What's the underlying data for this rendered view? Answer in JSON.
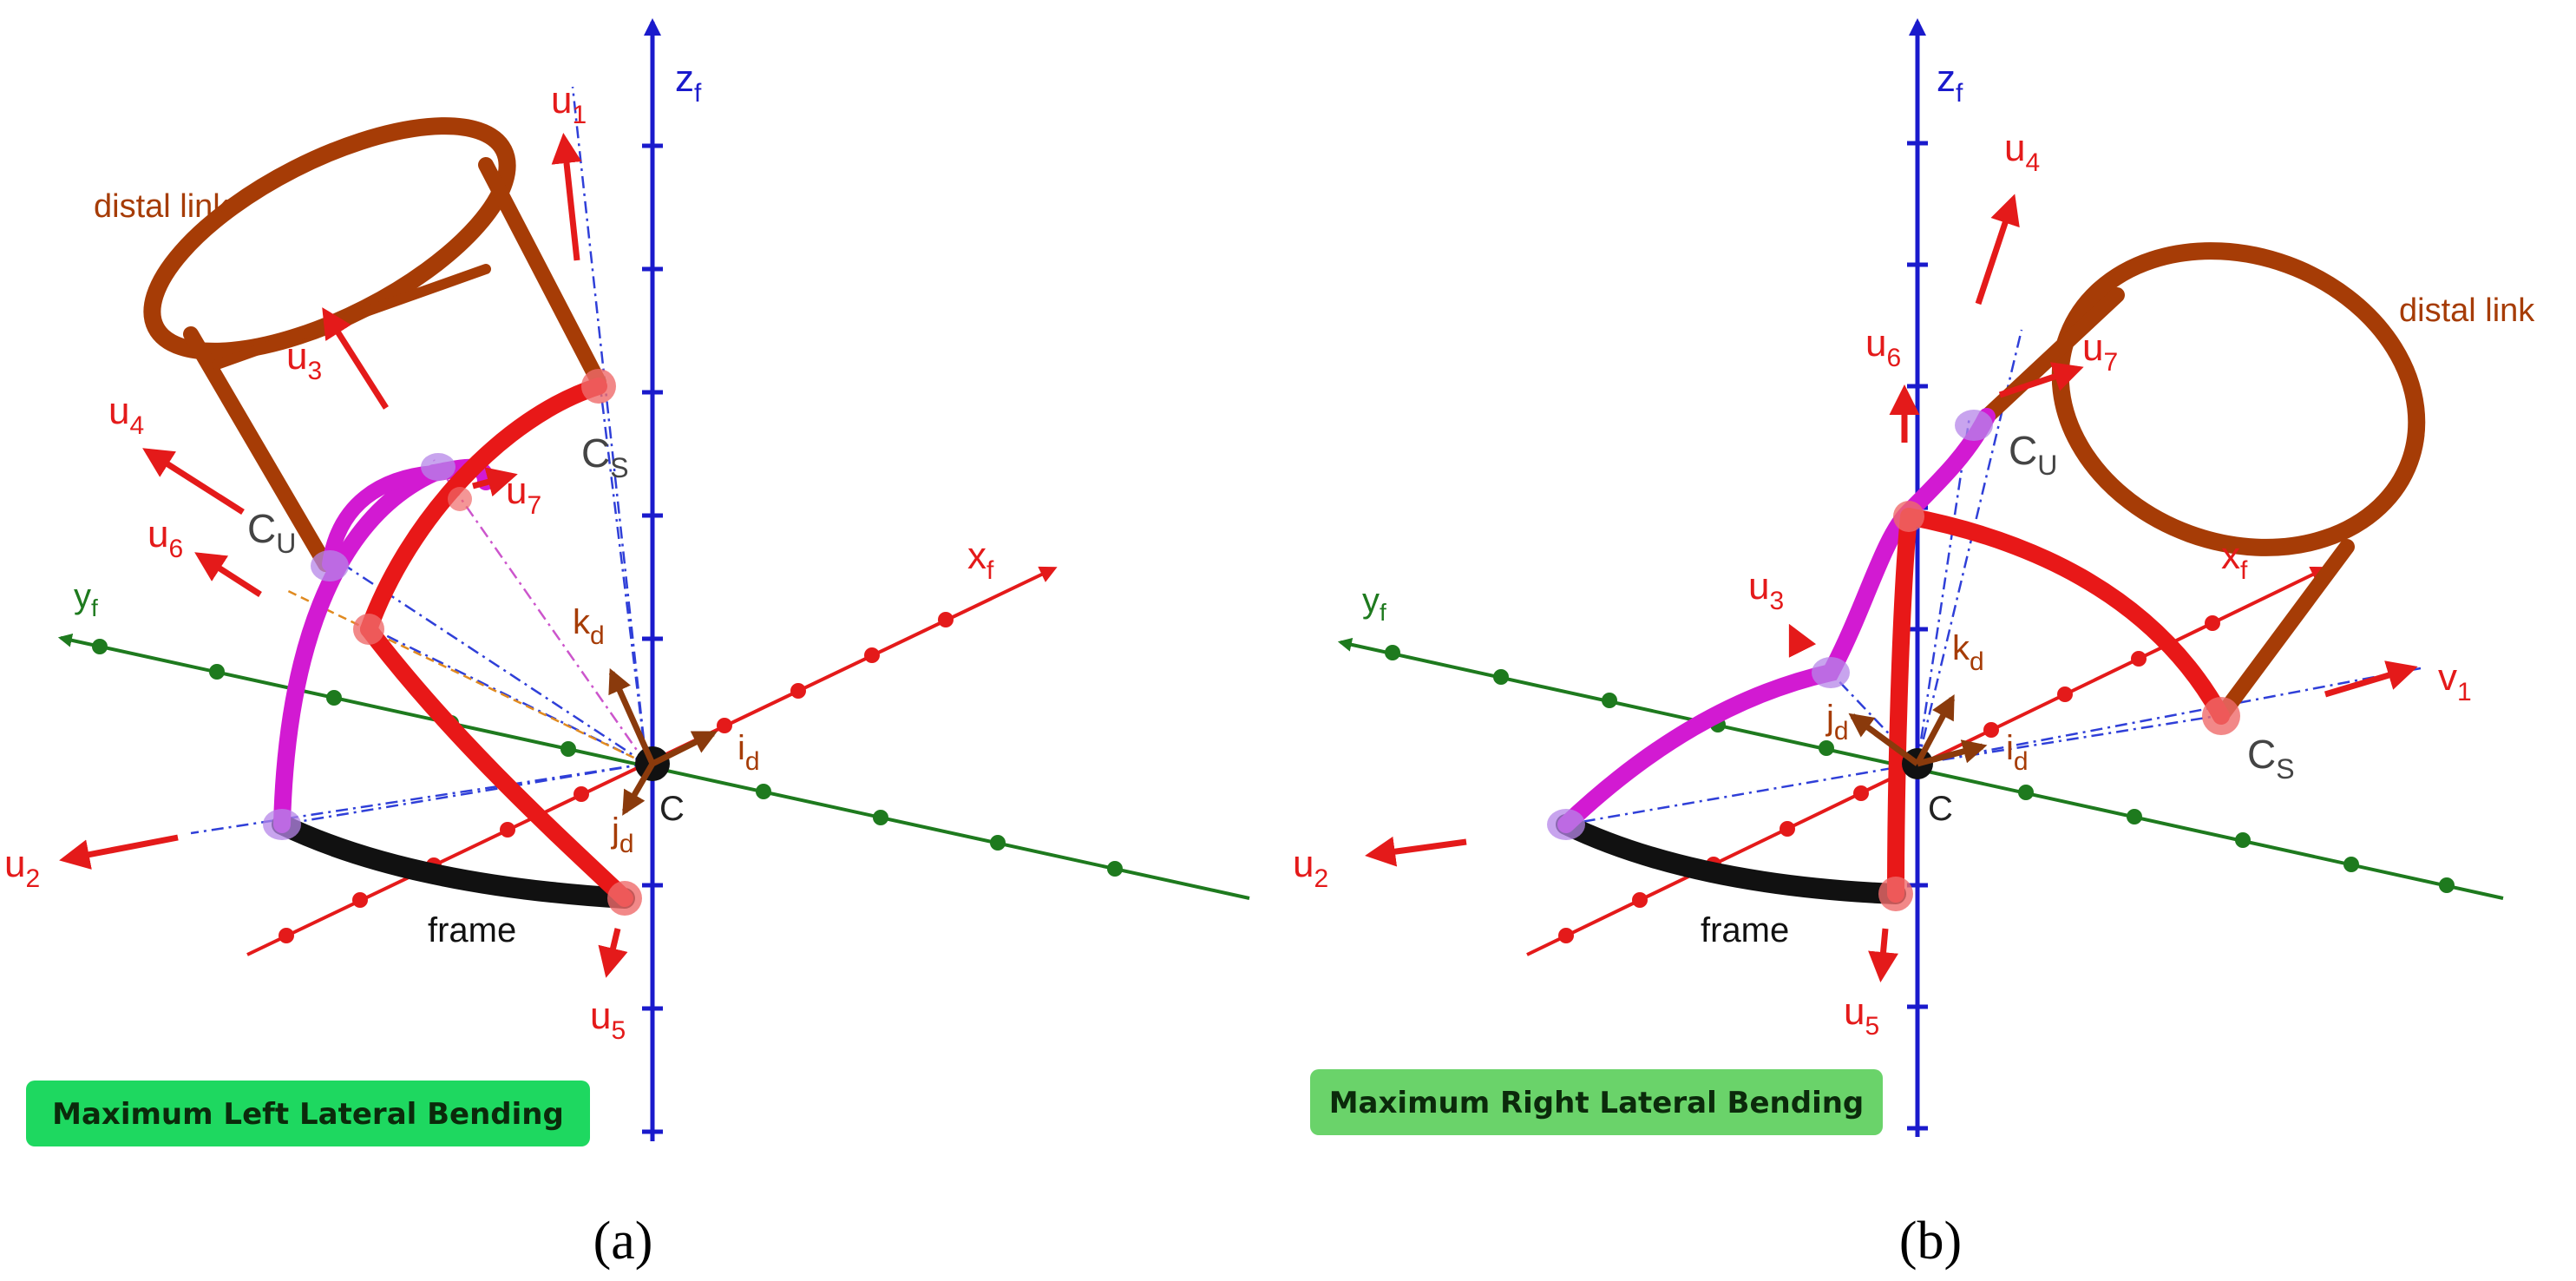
{
  "colors": {
    "axis_z": "#1a1acc",
    "axis_x": "#e41a1a",
    "axis_y": "#1e7a1e",
    "unit_vector": "#e41a1a",
    "red_tube": "#e81818",
    "magenta_tube": "#d21ad2",
    "distal_link": "#a63c06",
    "frame_tube": "#111111",
    "joint_red": "#ef6a6a",
    "joint_purple": "#b686e8",
    "dashed_line": "#2f3fd8",
    "badge_a": "#1ed860",
    "badge_b": "#6ad36a"
  },
  "panel_a": {
    "caption": "(a)",
    "badge": "Maximum Left Lateral Bending",
    "labels": {
      "zf": "z",
      "zf_sub": "f",
      "xf": "x",
      "xf_sub": "f",
      "yf": "y",
      "yf_sub": "f",
      "v1": "u",
      "v1_sub": "1",
      "u2": "u",
      "u2_sub": "2",
      "u3": "u",
      "u3_sub": "3",
      "u4": "u",
      "u4_sub": "4",
      "u5": "u",
      "u5_sub": "5",
      "u6": "u",
      "u6_sub": "6",
      "u7": "u",
      "u7_sub": "7",
      "cs": "C",
      "cs_sub": "S",
      "cu": "C",
      "cu_sub": "U",
      "c": "C",
      "kd": "k",
      "kd_sub": "d",
      "id": "i",
      "id_sub": "d",
      "jd": "j",
      "jd_sub": "d",
      "distal": "distal link",
      "frame": "frame"
    }
  },
  "panel_b": {
    "caption": "(b)",
    "badge": "Maximum Right Lateral Bending",
    "labels": {
      "zf": "z",
      "zf_sub": "f",
      "xf": "x",
      "xf_sub": "f",
      "yf": "y",
      "yf_sub": "f",
      "v1": "v",
      "v1_sub": "1",
      "u2": "u",
      "u2_sub": "2",
      "u3": "u",
      "u3_sub": "3",
      "u4": "u",
      "u4_sub": "4",
      "u5": "u",
      "u5_sub": "5",
      "u6": "u",
      "u6_sub": "6",
      "u7": "u",
      "u7_sub": "7",
      "cs": "C",
      "cs_sub": "S",
      "cu": "C",
      "cu_sub": "U",
      "c": "C",
      "kd": "k",
      "kd_sub": "d",
      "id": "i",
      "id_sub": "d",
      "jd": "j",
      "jd_sub": "d",
      "distal": "distal link",
      "frame": "frame"
    }
  }
}
